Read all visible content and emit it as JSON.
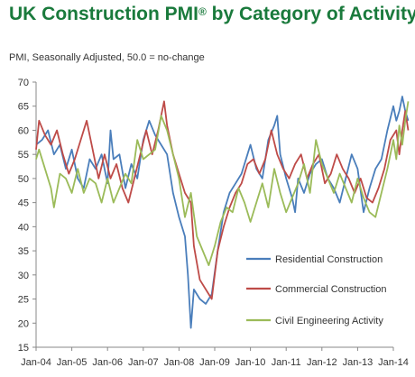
{
  "title_main": "UK Construction PMI",
  "title_sup": "®",
  "title_rest": " by Category of Activity",
  "subtitle": "PMI, Seasonally Adjusted, 50.0 = no-change",
  "chart_data": {
    "type": "line",
    "x_tick_labels": [
      "Jan-04",
      "Jan-05",
      "Jan-06",
      "Jan-07",
      "Jan-08",
      "Jan-09",
      "Jan-10",
      "Jan-11",
      "Jan-12",
      "Jan-13",
      "Jan-14"
    ],
    "x_start": "Jan-04",
    "x_end": "Jan-14",
    "y_ticks": [
      15,
      20,
      25,
      30,
      35,
      40,
      45,
      50,
      55,
      60,
      65,
      70
    ],
    "ylim": [
      15,
      70
    ],
    "grid": false,
    "legend_position": "lower-right",
    "series": [
      {
        "name": "Residential Construction",
        "color": "#4a7ebb",
        "points": [
          [
            0,
            57
          ],
          [
            2,
            58
          ],
          [
            4,
            60
          ],
          [
            6,
            55
          ],
          [
            8,
            57
          ],
          [
            10,
            52
          ],
          [
            12,
            56
          ],
          [
            14,
            50
          ],
          [
            16,
            48
          ],
          [
            18,
            54
          ],
          [
            20,
            52
          ],
          [
            22,
            55
          ],
          [
            24,
            49
          ],
          [
            25,
            60
          ],
          [
            26,
            54
          ],
          [
            28,
            55
          ],
          [
            30,
            48
          ],
          [
            32,
            53
          ],
          [
            34,
            50
          ],
          [
            36,
            58
          ],
          [
            38,
            62
          ],
          [
            40,
            59
          ],
          [
            42,
            57
          ],
          [
            44,
            55
          ],
          [
            46,
            47
          ],
          [
            48,
            42
          ],
          [
            50,
            38
          ],
          [
            51,
            30
          ],
          [
            52,
            19
          ],
          [
            53,
            27
          ],
          [
            55,
            25
          ],
          [
            57,
            24
          ],
          [
            59,
            26
          ],
          [
            61,
            35
          ],
          [
            63,
            43
          ],
          [
            65,
            47
          ],
          [
            67,
            49
          ],
          [
            69,
            51
          ],
          [
            71,
            55
          ],
          [
            72,
            57
          ],
          [
            74,
            52
          ],
          [
            76,
            50
          ],
          [
            78,
            58
          ],
          [
            80,
            61
          ],
          [
            81,
            63
          ],
          [
            82,
            55
          ],
          [
            84,
            50
          ],
          [
            86,
            46
          ],
          [
            87,
            43
          ],
          [
            88,
            50
          ],
          [
            90,
            47
          ],
          [
            92,
            51
          ],
          [
            94,
            53
          ],
          [
            96,
            54
          ],
          [
            98,
            50
          ],
          [
            100,
            48
          ],
          [
            102,
            45
          ],
          [
            104,
            50
          ],
          [
            106,
            55
          ],
          [
            108,
            52
          ],
          [
            110,
            43
          ],
          [
            112,
            48
          ],
          [
            114,
            52
          ],
          [
            116,
            54
          ],
          [
            118,
            60
          ],
          [
            120,
            65
          ],
          [
            121,
            62
          ],
          [
            122,
            64
          ],
          [
            123,
            67
          ],
          [
            124,
            64
          ],
          [
            125,
            62
          ]
        ]
      },
      {
        "name": "Commercial Construction",
        "color": "#be4b48",
        "points": [
          [
            0,
            56
          ],
          [
            1,
            62
          ],
          [
            3,
            59
          ],
          [
            5,
            57
          ],
          [
            7,
            60
          ],
          [
            9,
            55
          ],
          [
            11,
            51
          ],
          [
            13,
            54
          ],
          [
            15,
            58
          ],
          [
            17,
            62
          ],
          [
            19,
            56
          ],
          [
            21,
            50
          ],
          [
            23,
            55
          ],
          [
            25,
            50
          ],
          [
            27,
            53
          ],
          [
            29,
            48
          ],
          [
            31,
            45
          ],
          [
            33,
            50
          ],
          [
            35,
            55
          ],
          [
            37,
            60
          ],
          [
            39,
            55
          ],
          [
            41,
            60
          ],
          [
            43,
            66
          ],
          [
            44,
            61
          ],
          [
            46,
            55
          ],
          [
            48,
            51
          ],
          [
            50,
            47
          ],
          [
            52,
            45
          ],
          [
            53,
            36
          ],
          [
            55,
            29
          ],
          [
            57,
            27
          ],
          [
            59,
            25
          ],
          [
            61,
            35
          ],
          [
            63,
            40
          ],
          [
            65,
            44
          ],
          [
            67,
            47
          ],
          [
            69,
            49
          ],
          [
            71,
            53
          ],
          [
            73,
            54
          ],
          [
            75,
            51
          ],
          [
            77,
            54
          ],
          [
            79,
            60
          ],
          [
            81,
            55
          ],
          [
            83,
            52
          ],
          [
            85,
            50
          ],
          [
            87,
            53
          ],
          [
            89,
            55
          ],
          [
            91,
            50
          ],
          [
            93,
            53
          ],
          [
            95,
            55
          ],
          [
            97,
            49
          ],
          [
            99,
            51
          ],
          [
            101,
            55
          ],
          [
            103,
            52
          ],
          [
            105,
            50
          ],
          [
            107,
            47
          ],
          [
            109,
            50
          ],
          [
            111,
            46
          ],
          [
            113,
            45
          ],
          [
            115,
            48
          ],
          [
            117,
            52
          ],
          [
            119,
            58
          ],
          [
            121,
            60
          ],
          [
            122,
            55
          ],
          [
            123,
            60
          ],
          [
            124,
            64
          ],
          [
            125,
            60
          ]
        ]
      },
      {
        "name": "Civil Engineering Activity",
        "color": "#9bbb59",
        "points": [
          [
            0,
            54
          ],
          [
            1,
            56
          ],
          [
            3,
            52
          ],
          [
            5,
            48
          ],
          [
            6,
            44
          ],
          [
            8,
            51
          ],
          [
            10,
            50
          ],
          [
            12,
            47
          ],
          [
            14,
            52
          ],
          [
            16,
            47
          ],
          [
            18,
            50
          ],
          [
            20,
            49
          ],
          [
            22,
            45
          ],
          [
            24,
            50
          ],
          [
            26,
            45
          ],
          [
            28,
            48
          ],
          [
            30,
            51
          ],
          [
            32,
            49
          ],
          [
            34,
            58
          ],
          [
            36,
            54
          ],
          [
            38,
            55
          ],
          [
            40,
            56
          ],
          [
            42,
            63
          ],
          [
            44,
            60
          ],
          [
            46,
            55
          ],
          [
            48,
            50
          ],
          [
            50,
            42
          ],
          [
            52,
            47
          ],
          [
            54,
            38
          ],
          [
            56,
            35
          ],
          [
            58,
            32
          ],
          [
            60,
            36
          ],
          [
            62,
            41
          ],
          [
            64,
            44
          ],
          [
            66,
            43
          ],
          [
            68,
            48
          ],
          [
            70,
            45
          ],
          [
            72,
            41
          ],
          [
            74,
            45
          ],
          [
            76,
            49
          ],
          [
            78,
            44
          ],
          [
            80,
            52
          ],
          [
            82,
            47
          ],
          [
            84,
            43
          ],
          [
            86,
            46
          ],
          [
            88,
            49
          ],
          [
            90,
            53
          ],
          [
            92,
            47
          ],
          [
            94,
            58
          ],
          [
            96,
            53
          ],
          [
            98,
            50
          ],
          [
            100,
            47
          ],
          [
            102,
            51
          ],
          [
            104,
            48
          ],
          [
            106,
            45
          ],
          [
            108,
            50
          ],
          [
            110,
            46
          ],
          [
            112,
            43
          ],
          [
            114,
            42
          ],
          [
            116,
            47
          ],
          [
            118,
            52
          ],
          [
            120,
            58
          ],
          [
            121,
            54
          ],
          [
            122,
            61
          ],
          [
            123,
            57
          ],
          [
            124,
            62
          ],
          [
            125,
            66
          ]
        ]
      }
    ]
  }
}
